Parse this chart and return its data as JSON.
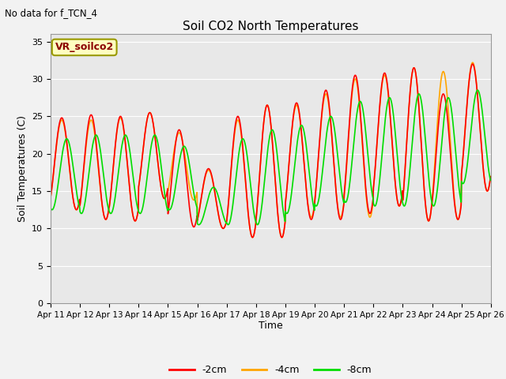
{
  "title": "Soil CO2 North Temperatures",
  "ylabel": "Soil Temperatures (C)",
  "xlabel": "Time",
  "note": "No data for f_TCN_4",
  "legend_box_label": "VR_soilco2",
  "ylim": [
    0,
    36
  ],
  "yticks": [
    0,
    5,
    10,
    15,
    20,
    25,
    30,
    35
  ],
  "x_tick_labels": [
    "Apr 11",
    "Apr 12",
    "Apr 13",
    "Apr 14",
    "Apr 15",
    "Apr 16",
    "Apr 17",
    "Apr 18",
    "Apr 19",
    "Apr 20",
    "Apr 21",
    "Apr 22",
    "Apr 23",
    "Apr 24",
    "Apr 25",
    "Apr 26"
  ],
  "colors": {
    "neg2cm": "#ff0000",
    "neg4cm": "#ffa500",
    "neg8cm": "#00dd00"
  },
  "legend_labels": [
    "-2cm",
    "-4cm",
    "-8cm"
  ],
  "fig_bg": "#f2f2f2",
  "plot_bg": "#e8e8e8",
  "grid_color": "#ffffff",
  "neg2cm_peaks": [
    24.8,
    12.5,
    25.2,
    11.2,
    25.0,
    11.0,
    25.5,
    14.0,
    23.2,
    10.2,
    18.0,
    10.0,
    25.0,
    8.8,
    26.5,
    8.8,
    26.8,
    11.2,
    28.5,
    11.2,
    30.5,
    12.0,
    30.8,
    13.0,
    31.5,
    11.0,
    28.0,
    11.2,
    32.0,
    15.0
  ],
  "neg4cm_peaks": [
    24.5,
    12.5,
    24.5,
    11.2,
    24.8,
    11.0,
    25.5,
    14.0,
    22.8,
    13.8,
    17.8,
    10.0,
    24.5,
    8.8,
    26.5,
    8.8,
    26.5,
    11.5,
    28.0,
    11.5,
    30.0,
    11.5,
    30.5,
    13.0,
    31.5,
    11.0,
    31.0,
    11.2,
    32.2,
    15.0
  ],
  "neg8cm_init": 16.0,
  "neg8cm_peaks": [
    22.0,
    12.5,
    22.5,
    12.0,
    22.5,
    12.0,
    22.5,
    12.0,
    21.0,
    12.5,
    15.5,
    10.5,
    22.0,
    10.5,
    23.2,
    10.5,
    23.8,
    12.0,
    25.0,
    13.0,
    27.0,
    13.5,
    27.5,
    13.0,
    28.0,
    13.0,
    27.5,
    13.0,
    28.5,
    16.0
  ],
  "phase_red": 0.38,
  "phase_green_lag": 0.15
}
